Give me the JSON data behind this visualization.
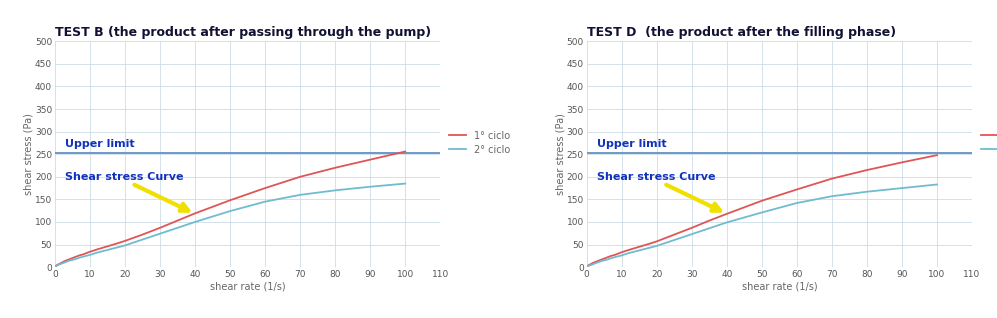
{
  "title_B": "TEST B (the product after passing through the pump)",
  "title_D": "TEST D  (the product after the filling phase)",
  "xlabel": "shear rate (1/s)",
  "ylabel": "shear stress (Pa)",
  "xlim": [
    0,
    110
  ],
  "ylim": [
    0,
    500
  ],
  "xticks": [
    0,
    10,
    20,
    30,
    40,
    50,
    60,
    70,
    80,
    90,
    100,
    110
  ],
  "yticks": [
    0,
    50,
    100,
    150,
    200,
    250,
    300,
    350,
    400,
    450,
    500
  ],
  "upper_limit": 253,
  "curve1_color": "#e05555",
  "curve2_color": "#70bbd0",
  "upper_limit_color": "#5588bb",
  "background_color": "#ffffff",
  "grid_color": "#ccdde8",
  "legend_label1": "1° ciclo",
  "legend_label2": "2° ciclo",
  "annotation_upper": "Upper limit",
  "annotation_shear": "Shear stress Curve",
  "title_fontsize": 9,
  "axis_label_fontsize": 7,
  "tick_fontsize": 6.5,
  "legend_fontsize": 7,
  "annotation_upper_fontsize": 8,
  "annotation_shear_fontsize": 8,
  "upper_text_color": "#1133bb",
  "shear_text_color": "#1133bb",
  "curve_x": [
    0,
    0.5,
    1,
    2,
    3,
    4,
    5,
    6,
    7,
    8,
    9,
    10,
    12,
    15,
    18,
    20,
    25,
    30,
    35,
    40,
    50,
    60,
    70,
    80,
    90,
    100
  ],
  "curve_B_1_y": [
    0,
    4,
    6,
    10,
    14,
    17,
    20,
    23,
    26,
    28,
    31,
    34,
    39,
    46,
    53,
    58,
    72,
    87,
    103,
    119,
    148,
    175,
    200,
    220,
    238,
    256
  ],
  "curve_B_2_y": [
    0,
    3,
    5,
    8,
    11,
    14,
    16,
    18,
    21,
    23,
    25,
    27,
    32,
    38,
    44,
    48,
    61,
    74,
    87,
    100,
    124,
    145,
    160,
    170,
    178,
    185
  ],
  "curve_D_1_y": [
    0,
    4,
    6,
    10,
    13,
    16,
    19,
    22,
    25,
    27,
    30,
    33,
    38,
    45,
    52,
    57,
    72,
    87,
    103,
    118,
    147,
    172,
    196,
    215,
    232,
    248
  ],
  "curve_D_2_y": [
    0,
    3,
    4,
    7,
    10,
    13,
    15,
    17,
    20,
    22,
    24,
    26,
    31,
    37,
    43,
    47,
    60,
    73,
    86,
    99,
    121,
    142,
    157,
    167,
    175,
    183
  ]
}
